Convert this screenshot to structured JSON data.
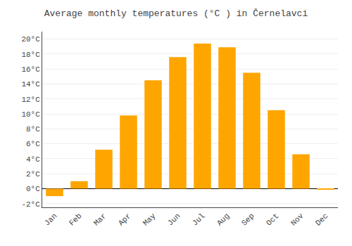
{
  "chart_data": {
    "type": "bar",
    "title": "Average monthly temperatures (°C ) in Černelavci",
    "categories": [
      "Jan",
      "Feb",
      "Mar",
      "Apr",
      "May",
      "Jun",
      "Jul",
      "Aug",
      "Sep",
      "Oct",
      "Nov",
      "Dec"
    ],
    "values": [
      -1.0,
      1.0,
      5.2,
      9.8,
      14.5,
      17.6,
      19.4,
      18.9,
      15.5,
      10.5,
      4.6,
      -0.1
    ],
    "color": "#FFA500",
    "ylim": [
      -2.5,
      21
    ],
    "yticks": [
      {
        "value": -2,
        "label": "-2°C"
      },
      {
        "value": 0,
        "label": "0°C"
      },
      {
        "value": 2,
        "label": "2°C"
      },
      {
        "value": 4,
        "label": "4°C"
      },
      {
        "value": 6,
        "label": "6°C"
      },
      {
        "value": 8,
        "label": "8°C"
      },
      {
        "value": 10,
        "label": "10°C"
      },
      {
        "value": 12,
        "label": "12°C"
      },
      {
        "value": 14,
        "label": "14°C"
      },
      {
        "value": 16,
        "label": "16°C"
      },
      {
        "value": 18,
        "label": "18°C"
      },
      {
        "value": 20,
        "label": "20°C"
      }
    ],
    "grid": true
  }
}
